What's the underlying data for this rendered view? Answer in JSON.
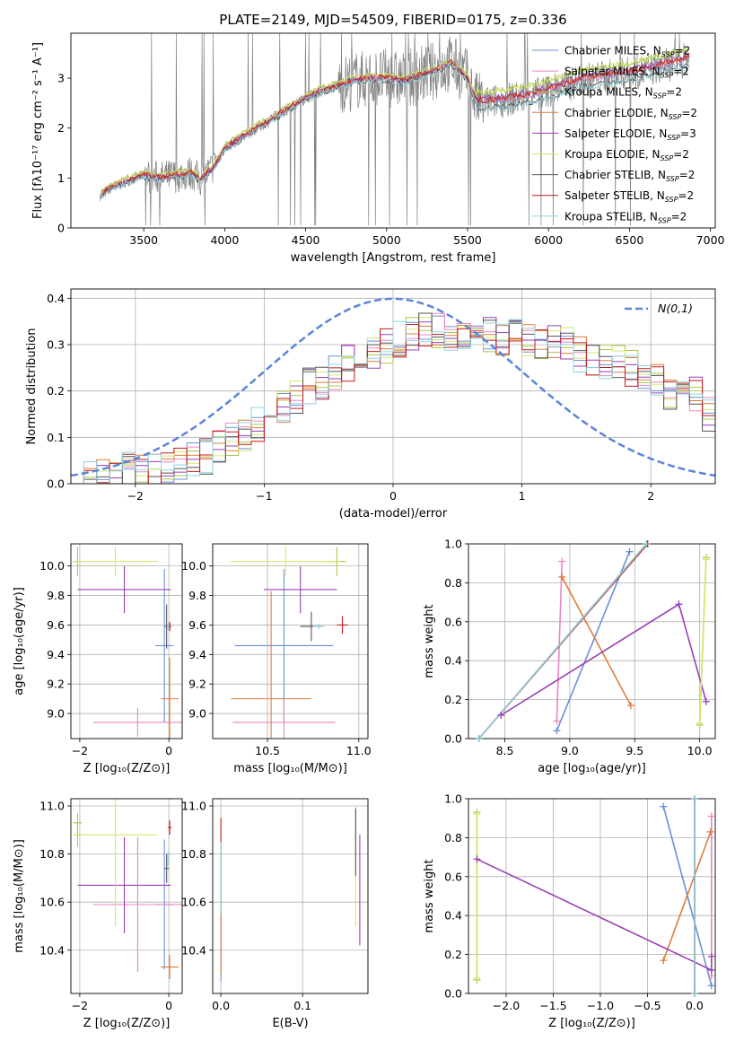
{
  "title": "PLATE=2149, MJD=54509, FIBERID=0175, z=0.336",
  "colors": {
    "chabrier_miles": "#6b8fd6",
    "salpeter_miles": "#e986c0",
    "kroupa_miles": "#a7c94a",
    "chabrier_elodie": "#e07b39",
    "salpeter_elodie": "#9b3fb5",
    "kroupa_elodie": "#d6e86a",
    "chabrier_stelib": "#555555",
    "salpeter_stelib": "#c41a1a",
    "kroupa_stelib": "#8fd3e0",
    "data": "#808080",
    "normal": "#5b85d9"
  },
  "chart_data": [
    {
      "id": "spectrum",
      "type": "line",
      "xlabel": "wavelength [Angstrom, rest frame]",
      "ylabel": "Flux [fλ10⁻¹⁷ erg cm⁻² s⁻¹ A⁻¹]",
      "xlim": [
        3050,
        7030
      ],
      "ylim": [
        0,
        3.9
      ],
      "xticks": [
        3500,
        4000,
        4500,
        5000,
        5500,
        6000,
        6500,
        7000
      ],
      "yticks": [
        0,
        1,
        2,
        3
      ],
      "continuum": {
        "x": [
          3230,
          3300,
          3400,
          3500,
          3600,
          3700,
          3800,
          3850,
          3950,
          4000,
          4100,
          4200,
          4300,
          4400,
          4500,
          4600,
          4700,
          4800,
          4900,
          5000,
          5100,
          5200,
          5300,
          5400,
          5500,
          5550,
          5600,
          5700,
          5800,
          5900,
          6000,
          6100,
          6200,
          6300,
          6400,
          6500,
          6600,
          6700,
          6800,
          6870
        ],
        "y": [
          0.65,
          0.8,
          0.95,
          1.05,
          1.0,
          1.05,
          1.1,
          0.95,
          1.3,
          1.6,
          1.8,
          2.0,
          2.2,
          2.4,
          2.6,
          2.75,
          2.85,
          2.95,
          3.0,
          3.0,
          2.95,
          3.05,
          3.15,
          3.3,
          3.0,
          2.55,
          2.5,
          2.55,
          2.6,
          2.65,
          2.75,
          2.85,
          2.95,
          3.0,
          3.05,
          3.1,
          3.15,
          3.25,
          3.3,
          3.4
        ]
      },
      "series": [
        {
          "name": "Chabrier MILES, N",
          "sub": "SSP",
          "suffix": "=2",
          "color_key": "chabrier_miles",
          "offset": 0.0
        },
        {
          "name": "Salpeter MILES, N",
          "sub": "SSP",
          "suffix": "=2",
          "color_key": "salpeter_miles",
          "offset": 0.02
        },
        {
          "name": "Kroupa MILES, N",
          "sub": "SSP",
          "suffix": "=2",
          "color_key": "kroupa_miles",
          "offset": 0.2
        },
        {
          "name": "Chabrier ELODIE, N",
          "sub": "SSP",
          "suffix": "=2",
          "color_key": "chabrier_elodie",
          "offset": 0.05
        },
        {
          "name": "Salpeter ELODIE, N",
          "sub": "SSP",
          "suffix": "=3",
          "color_key": "salpeter_elodie",
          "offset": 0.08
        },
        {
          "name": "Kroupa ELODIE, N",
          "sub": "SSP",
          "suffix": "=2",
          "color_key": "kroupa_elodie",
          "offset": 0.22
        },
        {
          "name": "Chabrier STELIB, N",
          "sub": "SSP",
          "suffix": "=2",
          "color_key": "chabrier_stelib",
          "offset": -0.12
        },
        {
          "name": "Salpeter STELIB, N",
          "sub": "SSP",
          "suffix": "=2",
          "color_key": "salpeter_stelib",
          "offset": 0.04
        },
        {
          "name": "Kroupa STELIB, N",
          "sub": "SSP",
          "suffix": "=2",
          "color_key": "kroupa_stelib",
          "offset": -0.15
        }
      ]
    },
    {
      "id": "residuals",
      "type": "line",
      "xlabel": "(data-model)/error",
      "ylabel": "Normed distribution",
      "xlim": [
        -2.5,
        2.5
      ],
      "ylim": [
        0,
        0.42
      ],
      "xticks": [
        -2,
        -1,
        0,
        1,
        2
      ],
      "yticks": [
        0.0,
        0.1,
        0.2,
        0.3,
        0.4
      ],
      "legend": "N(0,1)",
      "legend_position": "top-right",
      "bin_edges": [
        -2.5,
        -2.4,
        -2.3,
        -2.2,
        -2.1,
        -2.0,
        -1.9,
        -1.8,
        -1.7,
        -1.6,
        -1.5,
        -1.4,
        -1.3,
        -1.2,
        -1.1,
        -1.0,
        -0.9,
        -0.8,
        -0.7,
        -0.6,
        -0.5,
        -0.4,
        -0.3,
        -0.2,
        -0.1,
        0.0,
        0.1,
        0.2,
        0.3,
        0.4,
        0.5,
        0.6,
        0.7,
        0.8,
        0.9,
        1.0,
        1.1,
        1.2,
        1.3,
        1.4,
        1.5,
        1.6,
        1.7,
        1.8,
        1.9,
        2.0,
        2.1,
        2.2,
        2.3,
        2.4,
        2.5
      ],
      "base_values": [
        0.005,
        0.01,
        0.015,
        0.02,
        0.03,
        0.025,
        0.035,
        0.04,
        0.045,
        0.05,
        0.06,
        0.08,
        0.1,
        0.11,
        0.13,
        0.15,
        0.17,
        0.19,
        0.21,
        0.22,
        0.24,
        0.26,
        0.27,
        0.28,
        0.3,
        0.31,
        0.32,
        0.33,
        0.33,
        0.32,
        0.33,
        0.33,
        0.32,
        0.31,
        0.32,
        0.31,
        0.3,
        0.31,
        0.3,
        0.28,
        0.27,
        0.26,
        0.26,
        0.25,
        0.23,
        0.22,
        0.2,
        0.2,
        0.19,
        0.15
      ]
    },
    {
      "id": "age-vs-Z",
      "type": "scatter",
      "xlabel": "Z [log₁₀(Z/Z⊙)]",
      "ylabel": "age  [log₁₀(age/yr)]",
      "xlim": [
        -2.2,
        0.3
      ],
      "ylim": [
        8.83,
        10.15
      ],
      "xticks": [
        -2,
        0
      ],
      "yticks": [
        9.0,
        9.2,
        9.4,
        9.6,
        9.8,
        10.0
      ],
      "points": [
        {
          "color_key": "chabrier_miles",
          "x": -0.1,
          "xerr": 0.2,
          "y": 9.46,
          "yerr": 0.52
        },
        {
          "color_key": "salpeter_miles",
          "x": -0.7,
          "xerr": 1.0,
          "y": 8.94,
          "yerr": 0.1
        },
        {
          "color_key": "kroupa_miles",
          "x": -2.05,
          "xerr": 0.1,
          "y": 10.03,
          "yerr": 0.1
        },
        {
          "color_key": "chabrier_elodie",
          "x": 0.02,
          "xerr": 0.2,
          "y": 9.1,
          "yerr": 0.28
        },
        {
          "color_key": "salpeter_elodie",
          "x": -1.0,
          "xerr": 1.05,
          "y": 9.84,
          "yerr": 0.16
        },
        {
          "color_key": "kroupa_elodie",
          "x": -1.2,
          "xerr": 0.95,
          "y": 10.03,
          "yerr": 0.1
        },
        {
          "color_key": "chabrier_stelib",
          "x": -0.05,
          "xerr": 0.05,
          "y": 9.59,
          "yerr": 0.15
        },
        {
          "color_key": "salpeter_stelib",
          "x": 0.02,
          "xerr": 0.04,
          "y": 9.59,
          "yerr": 0.03
        },
        {
          "color_key": "kroupa_stelib",
          "x": -0.02,
          "xerr": 0.03,
          "y": 9.59,
          "yerr": 0.02
        }
      ]
    },
    {
      "id": "age-vs-mass",
      "type": "scatter",
      "xlabel": "mass [log₁₀(M/M⊙)]",
      "ylabel": "",
      "xlim": [
        10.2,
        11.05
      ],
      "ylim": [
        8.83,
        10.15
      ],
      "xticks": [
        10.5,
        11.0
      ],
      "yticks": [
        9.0,
        9.2,
        9.4,
        9.6,
        9.8,
        10.0
      ],
      "points": [
        {
          "color_key": "chabrier_miles",
          "x": 10.59,
          "xerr": 0.27,
          "y": 9.46,
          "yerr": 0.52
        },
        {
          "color_key": "salpeter_miles",
          "x": 10.59,
          "xerr": 0.28,
          "y": 8.94,
          "yerr": 0.15
        },
        {
          "color_key": "kroupa_miles",
          "x": 10.88,
          "xerr": 0.05,
          "y": 10.03,
          "yerr": 0.1
        },
        {
          "color_key": "chabrier_elodie",
          "x": 10.52,
          "xerr": 0.22,
          "y": 9.1,
          "yerr": 0.73
        },
        {
          "color_key": "salpeter_elodie",
          "x": 10.68,
          "xerr": 0.2,
          "y": 9.84,
          "yerr": 0.16
        },
        {
          "color_key": "kroupa_elodie",
          "x": 10.6,
          "xerr": 0.3,
          "y": 10.03,
          "yerr": 0.1
        },
        {
          "color_key": "chabrier_stelib",
          "x": 10.74,
          "xerr": 0.06,
          "y": 9.59,
          "yerr": 0.1
        },
        {
          "color_key": "salpeter_stelib",
          "x": 10.91,
          "xerr": 0.03,
          "y": 9.6,
          "yerr": 0.06
        },
        {
          "color_key": "kroupa_stelib",
          "x": 10.78,
          "xerr": 0.03,
          "y": 9.59,
          "yerr": 0.02
        }
      ]
    },
    {
      "id": "weight-vs-age",
      "type": "line",
      "xlabel": "age  [log₁₀(age/yr)]",
      "ylabel": "mass weight",
      "xlim": [
        8.22,
        10.12
      ],
      "ylim": [
        0,
        1.0
      ],
      "xticks": [
        8.5,
        9.0,
        9.5,
        10.0
      ],
      "yticks": [
        0.0,
        0.2,
        0.4,
        0.6,
        0.8,
        1.0
      ],
      "lines": [
        {
          "color_key": "chabrier_miles",
          "x": [
            8.9,
            9.46
          ],
          "y": [
            0.04,
            0.96
          ]
        },
        {
          "color_key": "salpeter_miles",
          "x": [
            8.9,
            8.94
          ],
          "y": [
            0.09,
            0.91
          ]
        },
        {
          "color_key": "kroupa_miles",
          "x": [
            10.0,
            10.05
          ],
          "y": [
            0.07,
            0.93
          ]
        },
        {
          "color_key": "chabrier_elodie",
          "x": [
            8.94,
            9.47
          ],
          "y": [
            0.83,
            0.17
          ]
        },
        {
          "color_key": "salpeter_elodie",
          "x": [
            8.47,
            9.84,
            10.05
          ],
          "y": [
            0.12,
            0.69,
            0.19
          ]
        },
        {
          "color_key": "kroupa_elodie",
          "x": [
            10.0,
            10.05
          ],
          "y": [
            0.08,
            0.92
          ]
        },
        {
          "color_key": "chabrier_stelib",
          "x": [
            8.3,
            9.59
          ],
          "y": [
            0.0,
            1.0
          ]
        },
        {
          "color_key": "salpeter_stelib",
          "x": [
            8.3,
            9.6
          ],
          "y": [
            0.0,
            1.0
          ]
        },
        {
          "color_key": "kroupa_stelib",
          "x": [
            8.3,
            9.59
          ],
          "y": [
            0.0,
            1.0
          ]
        }
      ]
    },
    {
      "id": "mass-vs-Z",
      "type": "scatter",
      "xlabel": "Z [log₁₀(Z/Z⊙)]",
      "ylabel": "mass [log₁₀(M/M⊙)]",
      "xlim": [
        -2.2,
        0.3
      ],
      "ylim": [
        10.22,
        11.03
      ],
      "xticks": [
        -2,
        0
      ],
      "yticks": [
        10.4,
        10.6,
        10.8,
        11.0
      ],
      "points": [
        {
          "color_key": "chabrier_miles",
          "x": -0.1,
          "xerr": 0.2,
          "y": 10.59,
          "yerr": 0.27
        },
        {
          "color_key": "salpeter_miles",
          "x": -0.7,
          "xerr": 1.0,
          "y": 10.59,
          "yerr": 0.28
        },
        {
          "color_key": "kroupa_miles",
          "x": -2.05,
          "xerr": 0.1,
          "y": 10.88,
          "yerr": 0.05
        },
        {
          "color_key": "chabrier_elodie",
          "x": 0.02,
          "xerr": 0.2,
          "y": 10.33,
          "yerr": 0.05
        },
        {
          "color_key": "salpeter_elodie",
          "x": -1.0,
          "xerr": 1.05,
          "y": 10.67,
          "yerr": 0.2
        },
        {
          "color_key": "kroupa_elodie",
          "x": -1.2,
          "xerr": 0.95,
          "y": 10.88,
          "yerr": 0.38
        },
        {
          "color_key": "chabrier_stelib",
          "x": -0.05,
          "xerr": 0.05,
          "y": 10.74,
          "yerr": 0.06
        },
        {
          "color_key": "salpeter_stelib",
          "x": 0.02,
          "xerr": 0.04,
          "y": 10.91,
          "yerr": 0.03
        },
        {
          "color_key": "kroupa_stelib",
          "x": -0.02,
          "xerr": 0.03,
          "y": 10.78,
          "yerr": 0.03
        },
        {
          "color_key": "kroupa_miles",
          "x": -2.05,
          "xerr": 0.1,
          "y": 10.93,
          "yerr": 0.04
        }
      ]
    },
    {
      "id": "mass-vs-ebv",
      "type": "scatter",
      "xlabel": "E(B-V)",
      "ylabel": "",
      "xlim": [
        -0.01,
        0.18
      ],
      "ylim": [
        10.22,
        11.03
      ],
      "xticks": [
        0.0,
        0.1
      ],
      "yticks": [
        10.4,
        10.6,
        10.8,
        11.0
      ],
      "points": [
        {
          "color_key": "chabrier_miles",
          "x": 0.0,
          "xerr": 0.0,
          "y": 10.55,
          "yerr": 0.28
        },
        {
          "color_key": "salpeter_stelib",
          "x": 0.0,
          "xerr": 0.0,
          "y": 10.75,
          "yerr": 0.2
        },
        {
          "color_key": "chabrier_elodie",
          "x": 0.0,
          "xerr": 0.0,
          "y": 10.5,
          "yerr": 0.2
        },
        {
          "color_key": "kroupa_stelib",
          "x": 0.0,
          "xerr": 0.0,
          "y": 10.7,
          "yerr": 0.15
        },
        {
          "color_key": "kroupa_elodie",
          "x": 0.165,
          "xerr": 0.0,
          "y": 10.75,
          "yerr": 0.25
        },
        {
          "color_key": "chabrier_stelib",
          "x": 0.165,
          "xerr": 0.0,
          "y": 10.85,
          "yerr": 0.14
        },
        {
          "color_key": "salpeter_elodie",
          "x": 0.17,
          "xerr": 0.0,
          "y": 10.65,
          "yerr": 0.23
        }
      ]
    },
    {
      "id": "weight-vs-Z",
      "type": "line",
      "xlabel": "Z [log₁₀(Z/Z⊙)]",
      "ylabel": "mass weight",
      "xlim": [
        -2.4,
        0.22
      ],
      "ylim": [
        0,
        1.0
      ],
      "xticks": [
        -2.0,
        -1.5,
        -1.0,
        -0.5,
        0.0
      ],
      "yticks": [
        0.0,
        0.2,
        0.4,
        0.6,
        0.8,
        1.0
      ],
      "lines": [
        {
          "color_key": "chabrier_miles",
          "x": [
            -0.33,
            0.18
          ],
          "y": [
            0.96,
            0.04
          ]
        },
        {
          "color_key": "salpeter_miles",
          "x": [
            0.18,
            0.18
          ],
          "y": [
            0.09,
            0.91
          ]
        },
        {
          "color_key": "kroupa_miles",
          "x": [
            -2.31,
            -2.31
          ],
          "y": [
            0.07,
            0.93
          ]
        },
        {
          "color_key": "chabrier_elodie",
          "x": [
            -0.33,
            0.17
          ],
          "y": [
            0.17,
            0.83
          ]
        },
        {
          "color_key": "salpeter_elodie",
          "x": [
            -2.31,
            0.18,
            0.18
          ],
          "y": [
            0.69,
            0.12,
            0.19
          ]
        },
        {
          "color_key": "kroupa_elodie",
          "x": [
            -2.31,
            -2.31
          ],
          "y": [
            0.08,
            0.92
          ]
        },
        {
          "color_key": "chabrier_stelib",
          "x": [
            0.0,
            0.0
          ],
          "y": [
            0.0,
            1.0
          ]
        },
        {
          "color_key": "salpeter_stelib",
          "x": [
            0.0,
            0.0
          ],
          "y": [
            0.0,
            1.0
          ]
        },
        {
          "color_key": "kroupa_stelib",
          "x": [
            0.0,
            0.0
          ],
          "y": [
            0.0,
            1.0
          ]
        }
      ]
    }
  ]
}
